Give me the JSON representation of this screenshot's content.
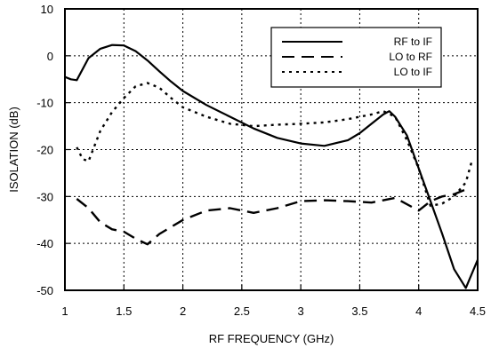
{
  "chart_data": {
    "type": "line",
    "title": "",
    "xlabel": "RF FREQUENCY (GHz)",
    "ylabel": "ISOLATION (dB)",
    "xlim": [
      1,
      4.5
    ],
    "ylim": [
      -50,
      10
    ],
    "xticks": [
      "1",
      "1.5",
      "2",
      "2.5",
      "3",
      "3.5",
      "4",
      "4.5"
    ],
    "yticks": [
      "10",
      "0",
      "-10",
      "-20",
      "-30",
      "-40",
      "-50"
    ],
    "grid": true,
    "legend_position": "top-right",
    "series": [
      {
        "name": "RF to IF",
        "style": "solid",
        "points": [
          [
            1.0,
            -4.5
          ],
          [
            1.05,
            -5
          ],
          [
            1.1,
            -5.2
          ],
          [
            1.2,
            -0.5
          ],
          [
            1.3,
            1.5
          ],
          [
            1.4,
            2.3
          ],
          [
            1.5,
            2.2
          ],
          [
            1.6,
            1
          ],
          [
            1.7,
            -1
          ],
          [
            1.8,
            -3.3
          ],
          [
            1.9,
            -5.5
          ],
          [
            2.0,
            -7.5
          ],
          [
            2.2,
            -10.5
          ],
          [
            2.4,
            -13
          ],
          [
            2.6,
            -15.5
          ],
          [
            2.8,
            -17.5
          ],
          [
            3.0,
            -18.7
          ],
          [
            3.2,
            -19.2
          ],
          [
            3.4,
            -18
          ],
          [
            3.5,
            -16.5
          ],
          [
            3.6,
            -14.5
          ],
          [
            3.7,
            -12.5
          ],
          [
            3.75,
            -11.8
          ],
          [
            3.8,
            -13
          ],
          [
            3.9,
            -17
          ],
          [
            4.0,
            -24
          ],
          [
            4.1,
            -31
          ],
          [
            4.2,
            -38
          ],
          [
            4.3,
            -45.5
          ],
          [
            4.4,
            -49.5
          ],
          [
            4.5,
            -43.5
          ]
        ]
      },
      {
        "name": "LO to RF",
        "style": "dashed",
        "points": [
          [
            1.1,
            -30.5
          ],
          [
            1.2,
            -32.5
          ],
          [
            1.3,
            -35.5
          ],
          [
            1.4,
            -37
          ],
          [
            1.5,
            -37.5
          ],
          [
            1.6,
            -39
          ],
          [
            1.7,
            -40.2
          ],
          [
            1.8,
            -38
          ],
          [
            1.9,
            -36.5
          ],
          [
            2.0,
            -35
          ],
          [
            2.2,
            -33
          ],
          [
            2.4,
            -32.5
          ],
          [
            2.6,
            -33.5
          ],
          [
            2.8,
            -32.5
          ],
          [
            3.0,
            -31
          ],
          [
            3.2,
            -30.8
          ],
          [
            3.4,
            -31
          ],
          [
            3.6,
            -31.3
          ],
          [
            3.8,
            -30.3
          ],
          [
            4.0,
            -33
          ],
          [
            4.1,
            -31
          ],
          [
            4.2,
            -30
          ],
          [
            4.3,
            -29.5
          ],
          [
            4.4,
            -28.5
          ]
        ]
      },
      {
        "name": "LO to IF",
        "style": "dotted",
        "points": [
          [
            1.1,
            -19.5
          ],
          [
            1.15,
            -22
          ],
          [
            1.2,
            -22.5
          ],
          [
            1.3,
            -16
          ],
          [
            1.4,
            -12
          ],
          [
            1.5,
            -9
          ],
          [
            1.6,
            -6.5
          ],
          [
            1.7,
            -5.8
          ],
          [
            1.8,
            -6.8
          ],
          [
            1.9,
            -9
          ],
          [
            2.0,
            -11
          ],
          [
            2.2,
            -13
          ],
          [
            2.4,
            -14.5
          ],
          [
            2.6,
            -15
          ],
          [
            2.8,
            -14.7
          ],
          [
            3.0,
            -14.5
          ],
          [
            3.2,
            -14.2
          ],
          [
            3.4,
            -13.5
          ],
          [
            3.6,
            -12.5
          ],
          [
            3.7,
            -11.8
          ],
          [
            3.8,
            -13
          ],
          [
            3.9,
            -18
          ],
          [
            4.0,
            -24
          ],
          [
            4.05,
            -28
          ],
          [
            4.1,
            -32
          ],
          [
            4.2,
            -31.5
          ],
          [
            4.3,
            -30
          ],
          [
            4.4,
            -27
          ],
          [
            4.45,
            -22.5
          ]
        ]
      }
    ],
    "legend": [
      {
        "label": "RF to IF",
        "style": "solid"
      },
      {
        "label": "LO to RF",
        "style": "dashed"
      },
      {
        "label": "LO to IF",
        "style": "dotted"
      }
    ]
  }
}
